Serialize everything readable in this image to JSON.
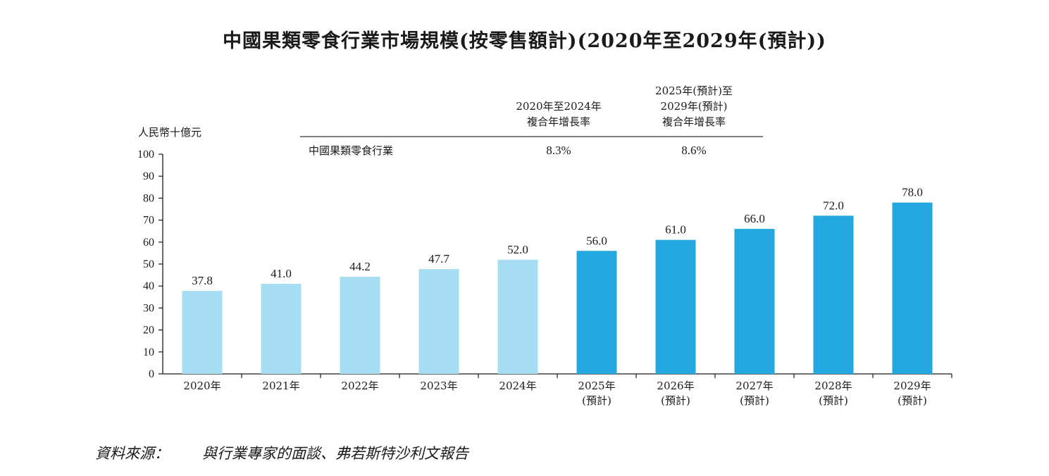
{
  "chart_data": {
    "type": "bar",
    "title": "中國果類零食行業市場規模(按零售額計)(2020年至2029年(預計))",
    "ylabel": "人民幣十億元",
    "ylim": [
      0,
      100
    ],
    "yticks": [
      0,
      10,
      20,
      30,
      40,
      50,
      60,
      70,
      80,
      90,
      100
    ],
    "categories": [
      [
        "2020年"
      ],
      [
        "2021年"
      ],
      [
        "2022年"
      ],
      [
        "2023年"
      ],
      [
        "2024年"
      ],
      [
        "2025年",
        "(預計)"
      ],
      [
        "2026年",
        "(預計)"
      ],
      [
        "2027年",
        "(預計)"
      ],
      [
        "2028年",
        "(預計)"
      ],
      [
        "2029年",
        "(預計)"
      ]
    ],
    "values": [
      37.8,
      41.0,
      44.2,
      47.7,
      52.0,
      56.0,
      61.0,
      66.0,
      72.0,
      78.0
    ],
    "value_labels": [
      "37.8",
      "41.0",
      "44.2",
      "47.7",
      "52.0",
      "56.0",
      "61.0",
      "66.0",
      "72.0",
      "78.0"
    ],
    "colors": {
      "historical": "#a6ddf2",
      "forecast": "#23a8df",
      "axis": "#1a1a1a"
    },
    "forecast_start_index": 5,
    "cagr_table": {
      "headers": [
        [
          "2020年至2024年",
          "複合年增長率"
        ],
        [
          "2025年(預計)至",
          "2029年(預計)",
          "複合年增長率"
        ]
      ],
      "row_label": "中國果類零食行業",
      "values": [
        "8.3%",
        "8.6%"
      ]
    },
    "source": {
      "label": "資料來源：",
      "text": "與行業專家的面談、弗若斯特沙利文報告"
    }
  }
}
